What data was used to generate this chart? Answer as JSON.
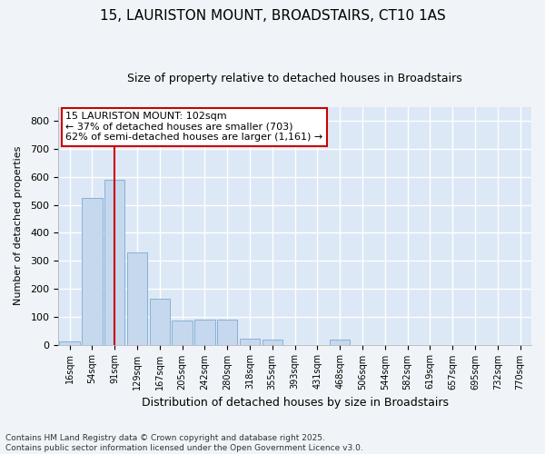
{
  "title": "15, LAURISTON MOUNT, BROADSTAIRS, CT10 1AS",
  "subtitle": "Size of property relative to detached houses in Broadstairs",
  "xlabel": "Distribution of detached houses by size in Broadstairs",
  "ylabel": "Number of detached properties",
  "bar_color": "#c5d8ee",
  "bar_edge_color": "#7aaad0",
  "bg_color": "#dce8f5",
  "grid_color": "#ffffff",
  "categories": [
    "16sqm",
    "54sqm",
    "91sqm",
    "129sqm",
    "167sqm",
    "205sqm",
    "242sqm",
    "280sqm",
    "318sqm",
    "355sqm",
    "393sqm",
    "431sqm",
    "468sqm",
    "506sqm",
    "544sqm",
    "582sqm",
    "619sqm",
    "657sqm",
    "695sqm",
    "732sqm",
    "770sqm"
  ],
  "values": [
    10,
    525,
    590,
    330,
    165,
    85,
    90,
    90,
    20,
    18,
    0,
    0,
    18,
    0,
    0,
    0,
    0,
    0,
    0,
    0,
    0
  ],
  "property_line_x": 2.0,
  "property_line_color": "#cc0000",
  "annotation_text": "15 LAURISTON MOUNT: 102sqm\n← 37% of detached houses are smaller (703)\n62% of semi-detached houses are larger (1,161) →",
  "annotation_box_color": "#cc0000",
  "footer_text": "Contains HM Land Registry data © Crown copyright and database right 2025.\nContains public sector information licensed under the Open Government Licence v3.0.",
  "ylim": [
    0,
    850
  ],
  "yticks": [
    0,
    100,
    200,
    300,
    400,
    500,
    600,
    700,
    800
  ],
  "fig_bg": "#f0f4f8"
}
